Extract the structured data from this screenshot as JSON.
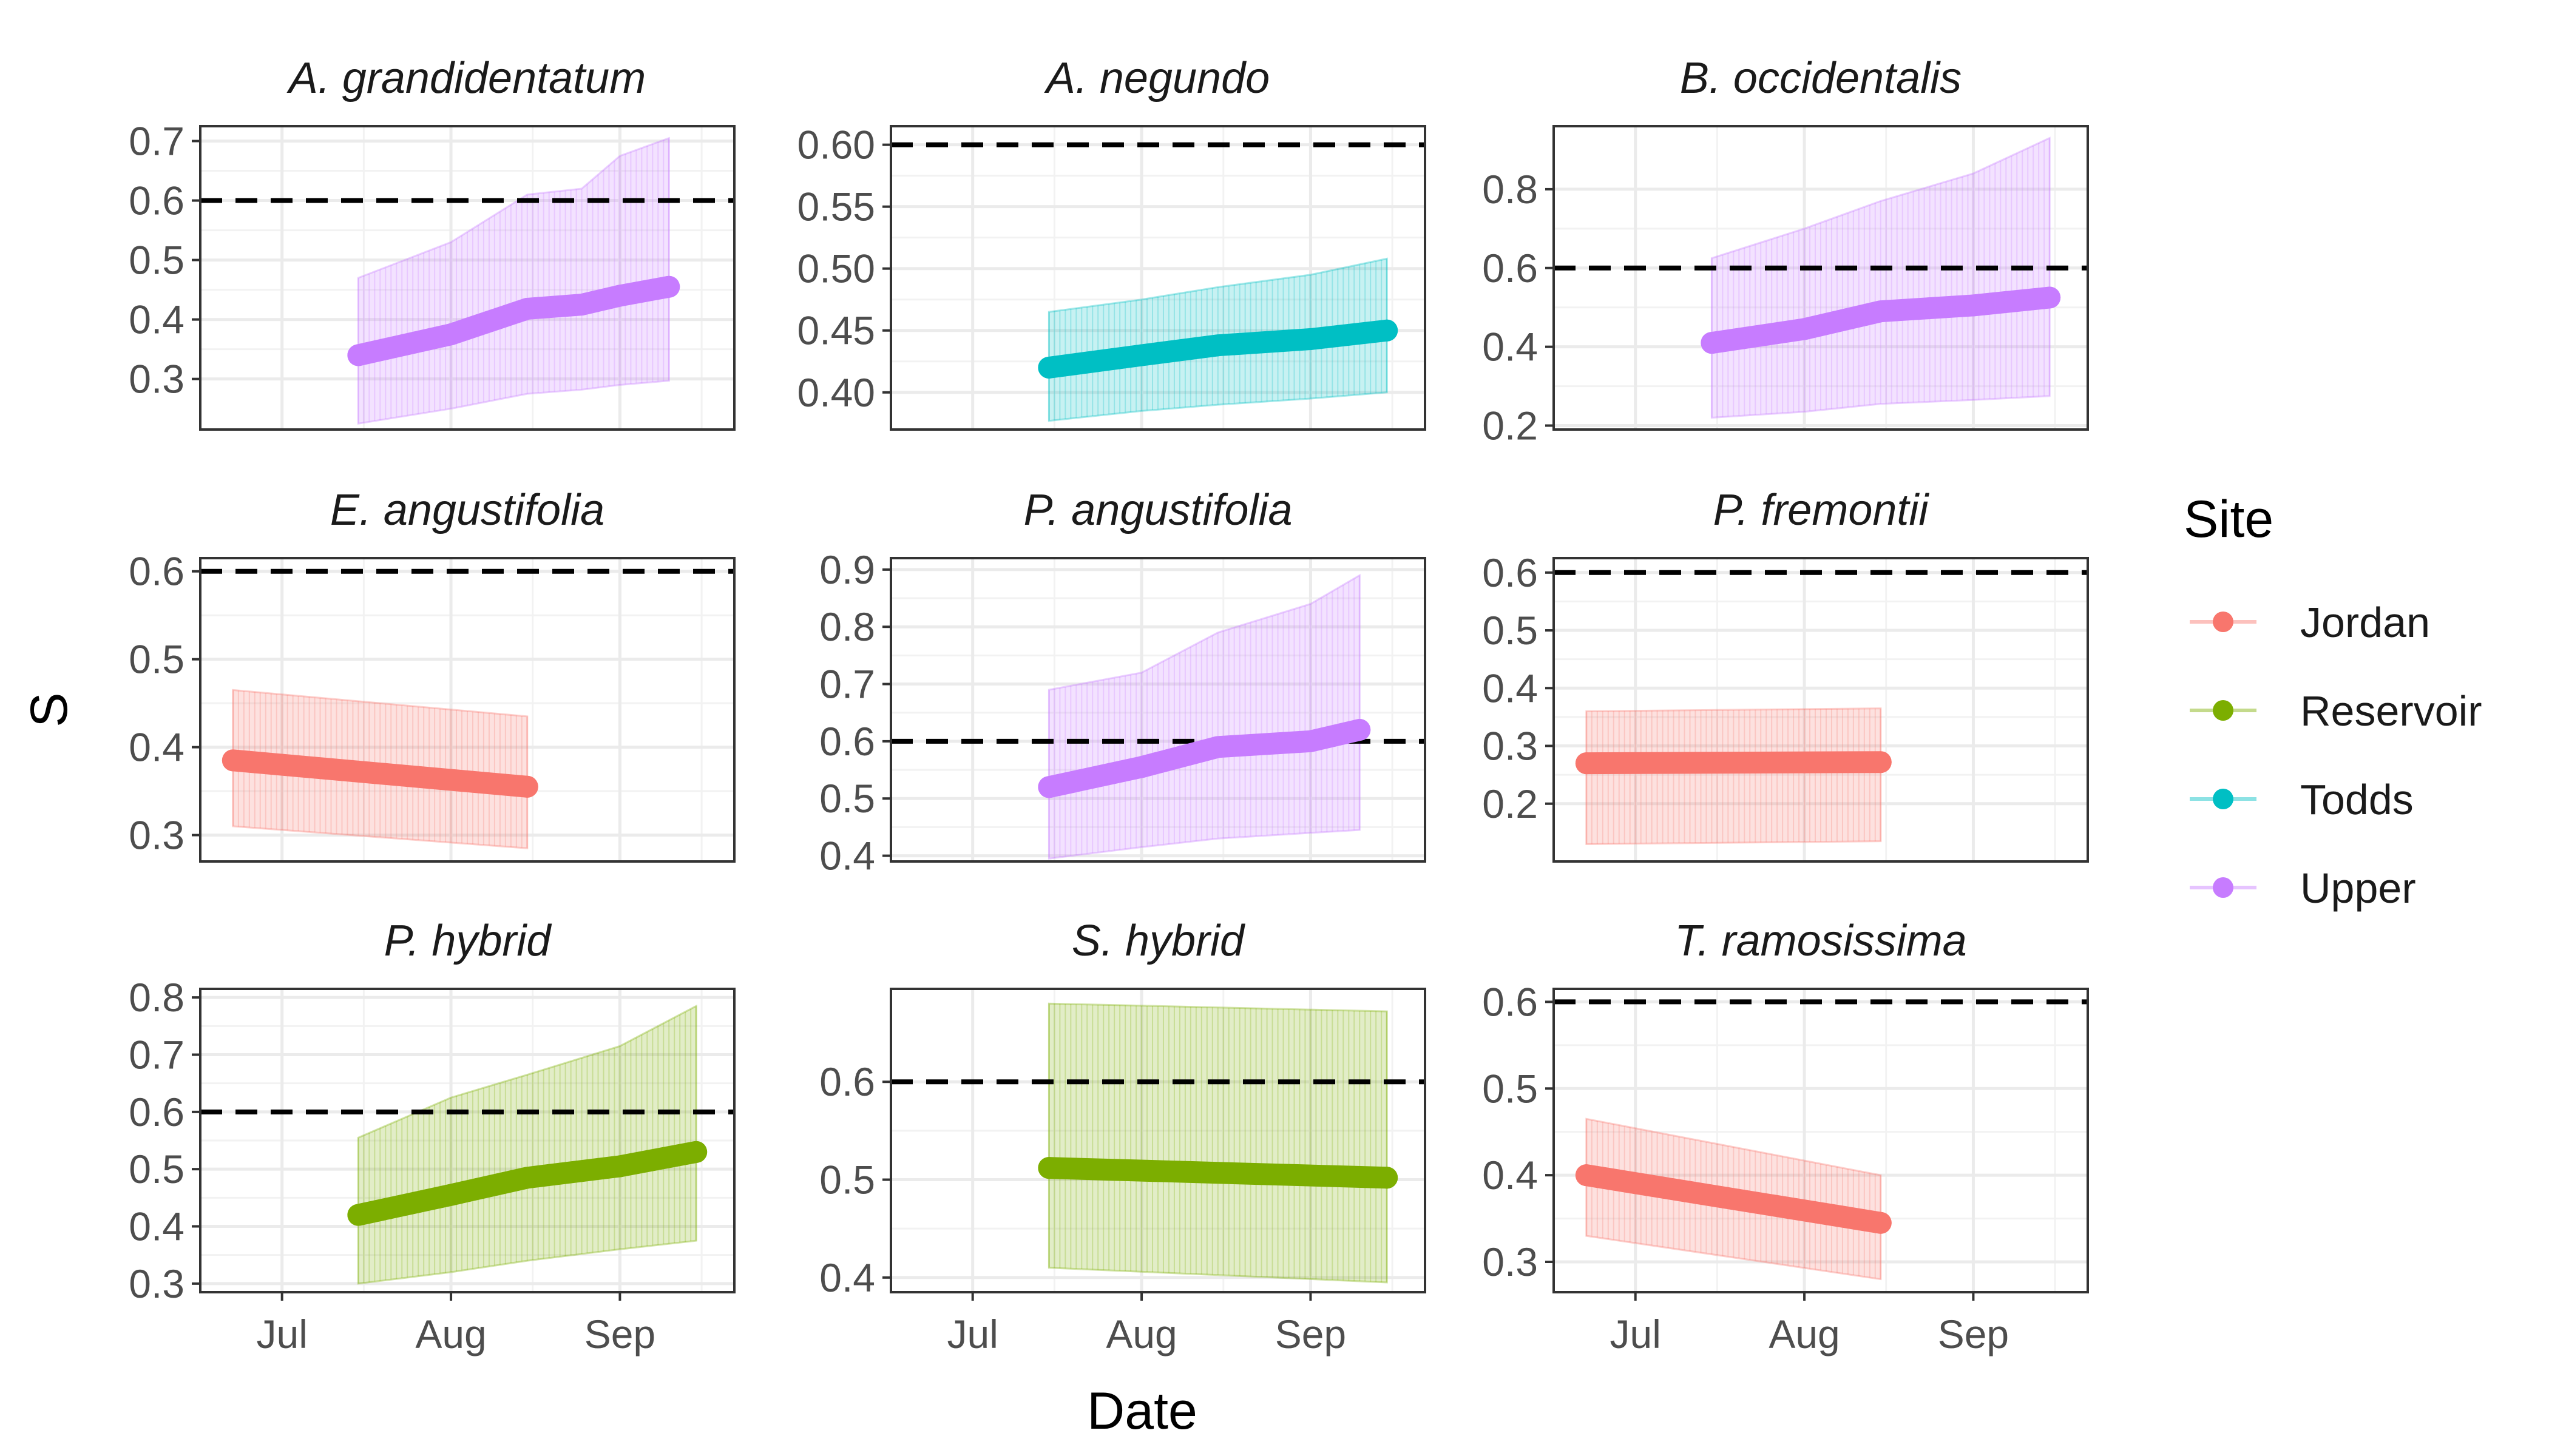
{
  "chart_data": {
    "type": "line",
    "xlabel": "Date",
    "ylabel": "S",
    "x_ticks": [
      "Jul",
      "Aug",
      "Sep"
    ],
    "x_tick_dates": [
      "07-01",
      "08-01",
      "09-01"
    ],
    "reference_line": {
      "y": 0.6,
      "style": "dashed",
      "color": "#000000"
    },
    "grid": true,
    "legend": {
      "title": "Site",
      "placement": "right",
      "entries": [
        {
          "name": "Jordan",
          "color": "#F8766D"
        },
        {
          "name": "Reservoir",
          "color": "#7CAE00"
        },
        {
          "name": "Todds",
          "color": "#00BFC4"
        },
        {
          "name": "Upper",
          "color": "#C77CFF"
        }
      ]
    },
    "panels": [
      {
        "title": "A. grandidentatum",
        "site": "Upper",
        "ylim": [
          0.215,
          0.725
        ],
        "yticks": [
          "0.3",
          "0.4",
          "0.5",
          "0.6",
          "0.7"
        ],
        "x": [
          "07-15",
          "08-01",
          "08-15",
          "08-25",
          "09-01",
          "09-10"
        ],
        "y": [
          0.34,
          0.375,
          0.418,
          0.425,
          0.44,
          0.455
        ],
        "lower": [
          0.225,
          0.25,
          0.275,
          0.282,
          0.29,
          0.297
        ],
        "upper": [
          0.47,
          0.53,
          0.61,
          0.62,
          0.675,
          0.705
        ]
      },
      {
        "title": "A. negundo",
        "site": "Todds",
        "ylim": [
          0.37,
          0.615
        ],
        "yticks": [
          "0.40",
          "0.45",
          "0.50",
          "0.55",
          "0.60"
        ],
        "x": [
          "07-15",
          "08-01",
          "08-15",
          "09-01",
          "09-15"
        ],
        "y": [
          0.42,
          0.43,
          0.438,
          0.443,
          0.45
        ],
        "lower": [
          0.377,
          0.385,
          0.39,
          0.395,
          0.4
        ],
        "upper": [
          0.465,
          0.475,
          0.485,
          0.495,
          0.508
        ]
      },
      {
        "title": "B. occidentalis",
        "site": "Upper",
        "ylim": [
          0.19,
          0.96
        ],
        "yticks": [
          "0.2",
          "0.4",
          "0.6",
          "0.8"
        ],
        "x": [
          "07-15",
          "08-01",
          "08-15",
          "09-01",
          "09-15"
        ],
        "y": [
          0.41,
          0.445,
          0.49,
          0.505,
          0.525
        ],
        "lower": [
          0.22,
          0.235,
          0.255,
          0.265,
          0.275
        ],
        "upper": [
          0.625,
          0.7,
          0.77,
          0.84,
          0.93
        ]
      },
      {
        "title": "E. angustifolia",
        "site": "Jordan",
        "ylim": [
          0.27,
          0.615
        ],
        "yticks": [
          "0.3",
          "0.4",
          "0.5",
          "0.6"
        ],
        "x": [
          "06-22",
          "08-15"
        ],
        "y": [
          0.385,
          0.355
        ],
        "lower": [
          0.31,
          0.285
        ],
        "upper": [
          0.465,
          0.435
        ]
      },
      {
        "title": "P. angustifolia",
        "site": "Upper",
        "ylim": [
          0.39,
          0.92
        ],
        "yticks": [
          "0.4",
          "0.5",
          "0.6",
          "0.7",
          "0.8",
          "0.9"
        ],
        "x": [
          "07-15",
          "08-01",
          "08-15",
          "09-01",
          "09-10"
        ],
        "y": [
          0.52,
          0.555,
          0.59,
          0.6,
          0.62
        ],
        "lower": [
          0.395,
          0.415,
          0.43,
          0.44,
          0.445
        ],
        "upper": [
          0.69,
          0.72,
          0.79,
          0.84,
          0.89
        ]
      },
      {
        "title": "P. fremontii",
        "site": "Jordan",
        "ylim": [
          0.1,
          0.625
        ],
        "yticks": [
          "0.2",
          "0.3",
          "0.4",
          "0.5",
          "0.6"
        ],
        "x": [
          "06-22",
          "08-15"
        ],
        "y": [
          0.27,
          0.272
        ],
        "lower": [
          0.13,
          0.135
        ],
        "upper": [
          0.36,
          0.365
        ]
      },
      {
        "title": "P. hybrid",
        "site": "Reservoir",
        "ylim": [
          0.285,
          0.815
        ],
        "yticks": [
          "0.3",
          "0.4",
          "0.5",
          "0.6",
          "0.7",
          "0.8"
        ],
        "x": [
          "07-15",
          "08-01",
          "08-15",
          "09-01",
          "09-15"
        ],
        "y": [
          0.42,
          0.455,
          0.485,
          0.505,
          0.53
        ],
        "lower": [
          0.3,
          0.32,
          0.34,
          0.36,
          0.375
        ],
        "upper": [
          0.555,
          0.625,
          0.665,
          0.715,
          0.785
        ]
      },
      {
        "title": "S. hybrid",
        "site": "Reservoir",
        "ylim": [
          0.385,
          0.695
        ],
        "yticks": [
          "0.4",
          "0.5",
          "0.6"
        ],
        "x": [
          "07-15",
          "09-15"
        ],
        "y": [
          0.512,
          0.502
        ],
        "lower": [
          0.41,
          0.395
        ],
        "upper": [
          0.68,
          0.672
        ]
      },
      {
        "title": "T. ramosissima",
        "site": "Jordan",
        "ylim": [
          0.265,
          0.615
        ],
        "yticks": [
          "0.3",
          "0.4",
          "0.5",
          "0.6"
        ],
        "x": [
          "06-22",
          "08-15"
        ],
        "y": [
          0.4,
          0.345
        ],
        "lower": [
          0.33,
          0.28
        ],
        "upper": [
          0.465,
          0.4
        ]
      }
    ]
  }
}
